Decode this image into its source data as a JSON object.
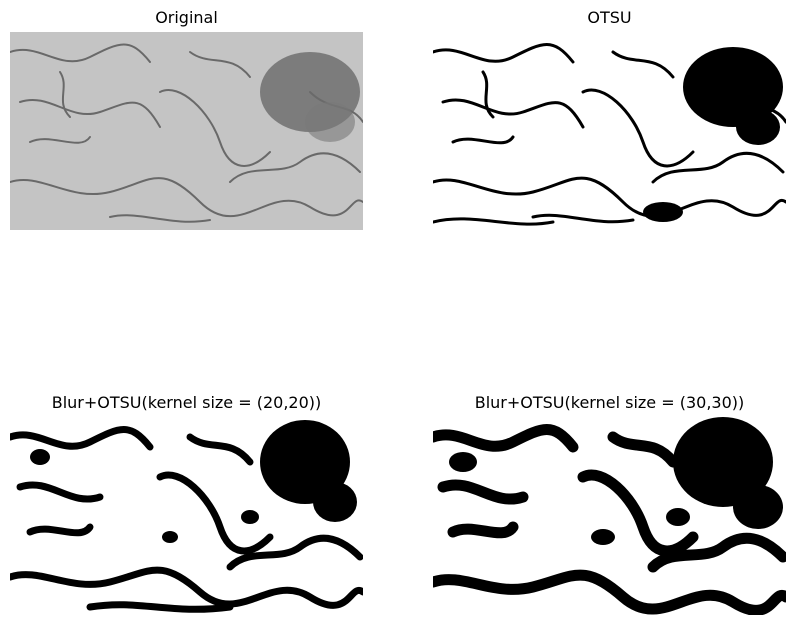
{
  "panels": [
    {
      "title": "Original"
    },
    {
      "title": "OTSU"
    },
    {
      "title": "Blur+OTSU(kernel size = (20,20))"
    },
    {
      "title": "Blur+OTSU(kernel size = (30,30))"
    }
  ],
  "colors": {
    "original_bg": "#c4c4c4",
    "original_tissue": "#5a5a5a",
    "binary_bg": "#ffffff",
    "binary_tissue": "#000000"
  }
}
